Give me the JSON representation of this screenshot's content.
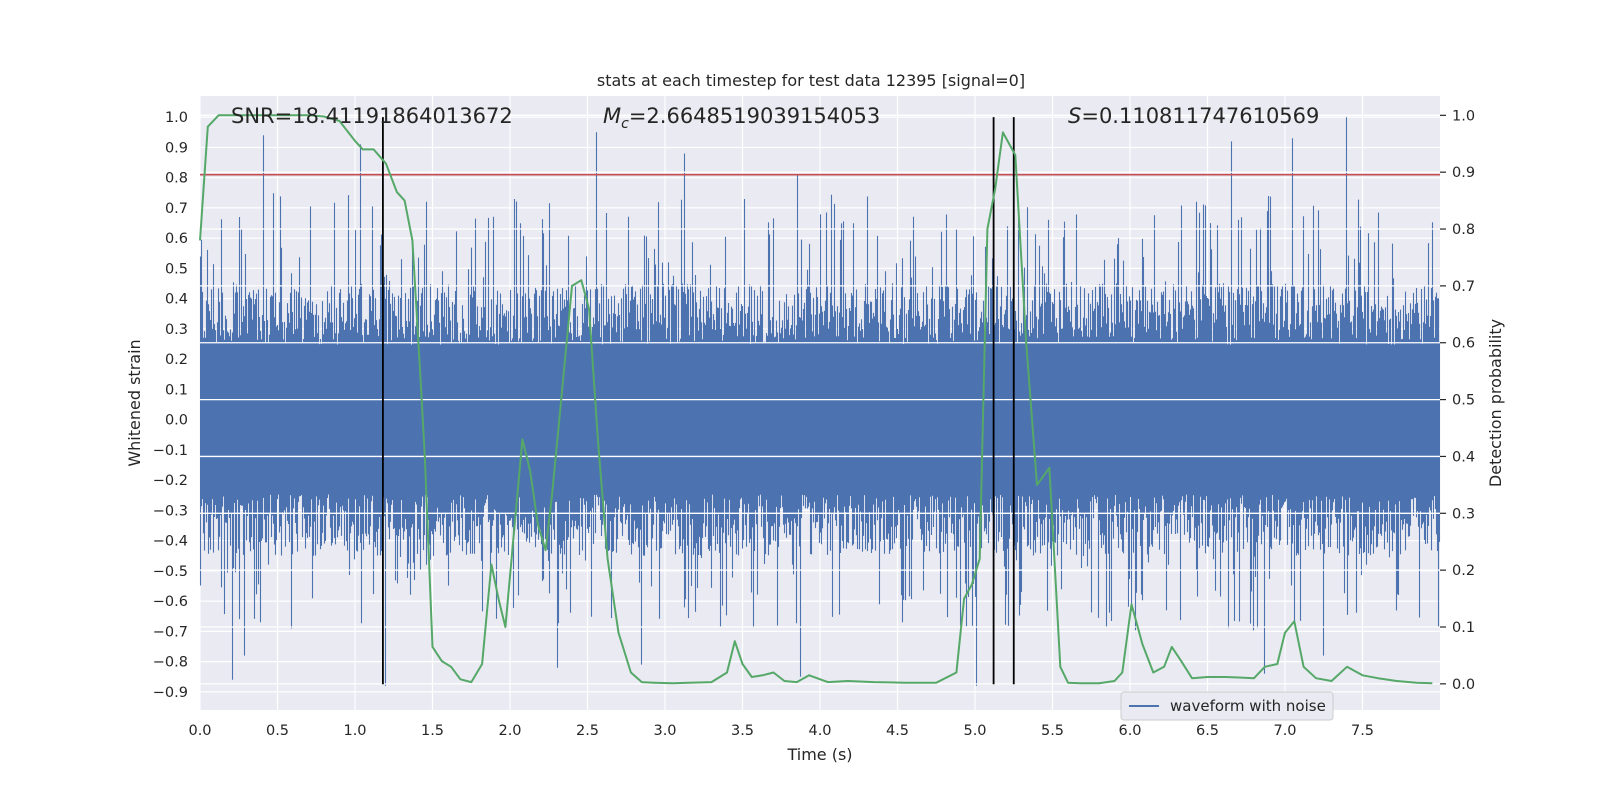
{
  "chart_data": {
    "type": "line",
    "title": "stats at each timestep for test data 12395 [signal=0]",
    "xlabel": "Time (s)",
    "ylabel": "Whitened strain",
    "y2label": "Detection probability",
    "xlim": [
      0.0,
      8.0
    ],
    "ylim": [
      -0.96,
      1.07
    ],
    "y2lim": [
      -0.046,
      1.034
    ],
    "xticks": [
      "0.0",
      "0.5",
      "1.0",
      "1.5",
      "2.0",
      "2.5",
      "3.0",
      "3.5",
      "4.0",
      "4.5",
      "5.0",
      "5.5",
      "6.0",
      "6.5",
      "7.0",
      "7.5"
    ],
    "yticks": [
      "-0.9",
      "-0.8",
      "-0.7",
      "-0.6",
      "-0.5",
      "-0.4",
      "-0.3",
      "-0.2",
      "-0.1",
      "0.0",
      "0.1",
      "0.2",
      "0.3",
      "0.4",
      "0.5",
      "0.6",
      "0.7",
      "0.8",
      "0.9",
      "1.0"
    ],
    "y2ticks": [
      "0.0",
      "0.1",
      "0.2",
      "0.3",
      "0.4",
      "0.5",
      "0.6",
      "0.7",
      "0.8",
      "0.9",
      "1.0"
    ],
    "grid": true,
    "legend_position": "lower-right",
    "annotations": {
      "snr_text": "SNR=18.41191864013672",
      "mc_symbol": "M",
      "mc_sub": "c",
      "mc_value": "=2.6648519039154053",
      "s_symbol": "S",
      "s_value": "=0.110811747610569"
    },
    "series": [
      {
        "name": "waveform with noise",
        "color": "#4c72b0",
        "axis": "left",
        "envelope": {
          "x": [
            0.0,
            0.5,
            1.0,
            1.5,
            2.0,
            2.5,
            3.0,
            3.5,
            4.0,
            4.5,
            5.0,
            5.5,
            6.0,
            6.5,
            7.0,
            7.5,
            8.0
          ],
          "upper_typical": [
            0.45,
            0.45,
            0.45,
            0.45,
            0.45,
            0.45,
            0.45,
            0.45,
            0.45,
            0.45,
            0.45,
            0.45,
            0.45,
            0.45,
            0.45,
            0.45,
            0.45
          ],
          "lower_typical": [
            -0.45,
            -0.45,
            -0.45,
            -0.45,
            -0.45,
            -0.45,
            -0.45,
            -0.45,
            -0.45,
            -0.45,
            -0.45,
            -0.45,
            -0.45,
            -0.45,
            -0.45,
            -0.45,
            -0.45
          ]
        },
        "peaks": [
          {
            "x": 0.41,
            "y": 0.94
          },
          {
            "x": 1.04,
            "y": 0.91
          },
          {
            "x": 2.56,
            "y": 0.95
          },
          {
            "x": 3.13,
            "y": 0.88
          },
          {
            "x": 3.86,
            "y": 0.81
          },
          {
            "x": 6.66,
            "y": 0.92
          },
          {
            "x": 7.05,
            "y": 0.93
          },
          {
            "x": 7.4,
            "y": 1.0
          },
          {
            "x": 1.2,
            "y": -0.88
          },
          {
            "x": 0.21,
            "y": -0.86
          },
          {
            "x": 0.29,
            "y": -0.78
          },
          {
            "x": 2.31,
            "y": -0.82
          },
          {
            "x": 2.85,
            "y": -0.81
          },
          {
            "x": 3.88,
            "y": -0.85
          },
          {
            "x": 5.01,
            "y": -0.88
          },
          {
            "x": 6.87,
            "y": -0.84
          },
          {
            "x": 7.25,
            "y": -0.78
          }
        ]
      },
      {
        "name": "",
        "color": "#55a868",
        "axis": "right",
        "x": [
          0.0,
          0.05,
          0.12,
          0.2,
          0.3,
          0.4,
          0.5,
          0.6,
          0.7,
          0.8,
          0.9,
          1.0,
          1.05,
          1.12,
          1.2,
          1.27,
          1.32,
          1.37,
          1.42,
          1.45,
          1.5,
          1.56,
          1.62,
          1.68,
          1.75,
          1.82,
          1.88,
          1.93,
          1.97,
          2.02,
          2.08,
          2.13,
          2.18,
          2.23,
          2.27,
          2.33,
          2.4,
          2.46,
          2.51,
          2.57,
          2.63,
          2.7,
          2.78,
          2.85,
          2.93,
          3.05,
          3.15,
          3.3,
          3.4,
          3.45,
          3.5,
          3.56,
          3.63,
          3.7,
          3.77,
          3.85,
          3.93,
          4.05,
          4.18,
          4.35,
          4.55,
          4.75,
          4.88,
          4.93,
          4.98,
          5.03,
          5.08,
          5.13,
          5.18,
          5.26,
          5.33,
          5.4,
          5.48,
          5.55,
          5.6,
          5.68,
          5.8,
          5.9,
          5.95,
          6.01,
          6.08,
          6.15,
          6.22,
          6.27,
          6.33,
          6.4,
          6.5,
          6.62,
          6.72,
          6.8,
          6.87,
          6.95,
          7.0,
          7.06,
          7.12,
          7.2,
          7.3,
          7.4,
          7.5,
          7.6,
          7.72,
          7.85,
          7.95
        ],
        "y": [
          0.78,
          0.98,
          1.0,
          1.0,
          1.0,
          1.0,
          1.0,
          1.0,
          1.0,
          0.998,
          0.99,
          0.955,
          0.94,
          0.94,
          0.915,
          0.865,
          0.85,
          0.78,
          0.55,
          0.4,
          0.065,
          0.04,
          0.03,
          0.008,
          0.003,
          0.035,
          0.21,
          0.145,
          0.1,
          0.25,
          0.43,
          0.375,
          0.28,
          0.235,
          0.33,
          0.5,
          0.7,
          0.71,
          0.66,
          0.42,
          0.22,
          0.09,
          0.02,
          0.003,
          0.002,
          0.001,
          0.002,
          0.003,
          0.02,
          0.075,
          0.035,
          0.012,
          0.015,
          0.02,
          0.005,
          0.003,
          0.015,
          0.003,
          0.005,
          0.003,
          0.002,
          0.002,
          0.02,
          0.15,
          0.175,
          0.22,
          0.8,
          0.87,
          0.97,
          0.93,
          0.6,
          0.35,
          0.38,
          0.03,
          0.002,
          0.001,
          0.001,
          0.005,
          0.02,
          0.14,
          0.07,
          0.02,
          0.03,
          0.065,
          0.04,
          0.01,
          0.012,
          0.012,
          0.011,
          0.01,
          0.03,
          0.035,
          0.09,
          0.11,
          0.03,
          0.01,
          0.005,
          0.03,
          0.015,
          0.01,
          0.005,
          0.002,
          0.001
        ]
      }
    ],
    "threshold_line": {
      "axis": "left",
      "y": 0.81,
      "color": "#c44e52"
    },
    "vertical_markers": [
      {
        "x": 1.18,
        "y_from": -0.875,
        "y_to": 1.0
      },
      {
        "x": 5.12,
        "y_from": -0.875,
        "y_to": 1.0
      },
      {
        "x": 5.25,
        "y_from": -0.875,
        "y_to": 1.0
      }
    ]
  }
}
